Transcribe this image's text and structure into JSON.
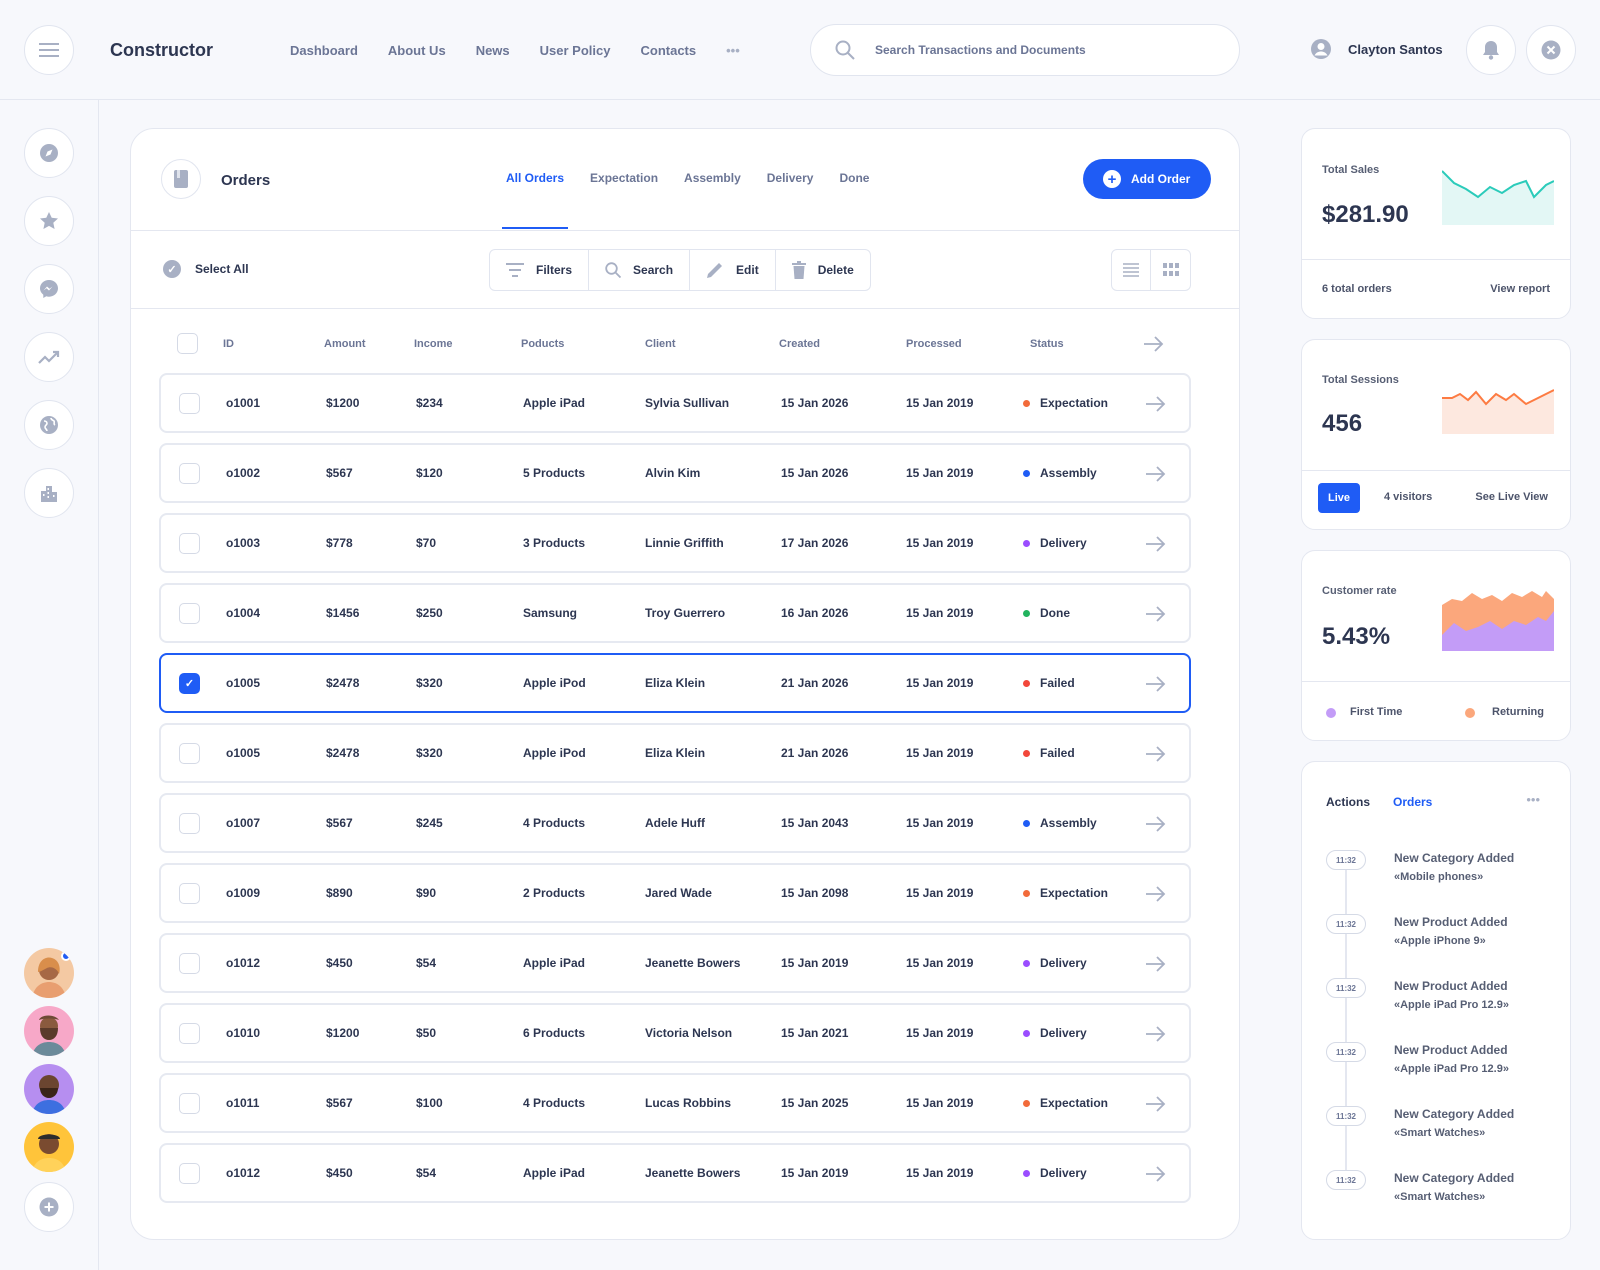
{
  "header": {
    "brand": "Constructor",
    "nav": [
      "Dashboard",
      "About Us",
      "News",
      "User Policy",
      "Contacts"
    ],
    "more": "•••",
    "search_placeholder": "Search Transactions and Documents",
    "user_name": "Clayton Santos"
  },
  "orders": {
    "title": "Orders",
    "tabs": [
      "All Orders",
      "Expectation",
      "Assembly",
      "Delivery",
      "Done"
    ],
    "active_tab": "All Orders",
    "add_button": "Add Order",
    "select_all": "Select All",
    "tools": [
      "Filters",
      "Search",
      "Edit",
      "Delete"
    ],
    "columns": [
      "ID",
      "Amount",
      "Income",
      "Poducts",
      "Client",
      "Created",
      "Processed",
      "Status"
    ],
    "rows": [
      {
        "id": "o1001",
        "amount": "$1200",
        "income": "$234",
        "products": "Apple iPad",
        "client": "Sylvia Sullivan",
        "created": "15 Jan 2026",
        "processed": "15 Jan 2019",
        "status": "Expectation",
        "checked": false
      },
      {
        "id": "o1002",
        "amount": "$567",
        "income": "$120",
        "products": "5 Products",
        "client": "Alvin Kim",
        "created": "15 Jan 2026",
        "processed": "15 Jan 2019",
        "status": "Assembly",
        "checked": false
      },
      {
        "id": "o1003",
        "amount": "$778",
        "income": "$70",
        "products": "3 Products",
        "client": "Linnie Griffith",
        "created": "17 Jan 2026",
        "processed": "15 Jan 2019",
        "status": "Delivery",
        "checked": false
      },
      {
        "id": "o1004",
        "amount": "$1456",
        "income": "$250",
        "products": "Samsung",
        "client": "Troy Guerrero",
        "created": "16 Jan 2026",
        "processed": "15 Jan 2019",
        "status": "Done",
        "checked": false
      },
      {
        "id": "o1005",
        "amount": "$2478",
        "income": "$320",
        "products": "Apple iPod",
        "client": "Eliza Klein",
        "created": "21 Jan 2026",
        "processed": "15 Jan 2019",
        "status": "Failed",
        "checked": true
      },
      {
        "id": "o1005",
        "amount": "$2478",
        "income": "$320",
        "products": "Apple iPod",
        "client": "Eliza Klein",
        "created": "21 Jan 2026",
        "processed": "15 Jan 2019",
        "status": "Failed",
        "checked": false
      },
      {
        "id": "o1007",
        "amount": "$567",
        "income": "$245",
        "products": "4 Products",
        "client": "Adele Huff",
        "created": "15 Jan 2043",
        "processed": "15 Jan 2019",
        "status": "Assembly",
        "checked": false
      },
      {
        "id": "o1009",
        "amount": "$890",
        "income": "$90",
        "products": "2 Products",
        "client": "Jared Wade",
        "created": "15 Jan 2098",
        "processed": "15 Jan 2019",
        "status": "Expectation",
        "checked": false
      },
      {
        "id": "o1012",
        "amount": "$450",
        "income": "$54",
        "products": "Apple iPad",
        "client": "Jeanette Bowers",
        "created": "15 Jan 2019",
        "processed": "15 Jan 2019",
        "status": "Delivery",
        "checked": false
      },
      {
        "id": "o1010",
        "amount": "$1200",
        "income": "$50",
        "products": "6 Products",
        "client": "Victoria Nelson",
        "created": "15 Jan 2021",
        "processed": "15 Jan 2019",
        "status": "Delivery",
        "checked": false
      },
      {
        "id": "o1011",
        "amount": "$567",
        "income": "$100",
        "products": "4 Products",
        "client": "Lucas Robbins",
        "created": "15 Jan 2025",
        "processed": "15 Jan 2019",
        "status": "Expectation",
        "checked": false
      },
      {
        "id": "o1012",
        "amount": "$450",
        "income": "$54",
        "products": "Apple iPad",
        "client": "Jeanette Bowers",
        "created": "15 Jan 2019",
        "processed": "15 Jan 2019",
        "status": "Delivery",
        "checked": false
      }
    ]
  },
  "status_colors": {
    "Expectation": "#f26b3a",
    "Assembly": "#1f5cf5",
    "Delivery": "#9b4dff",
    "Done": "#22b35e",
    "Failed": "#f2473a"
  },
  "stats": {
    "sales": {
      "label": "Total Sales",
      "value": "$281.90",
      "footer_left": "6 total orders",
      "footer_right": "View report",
      "color": "#2bcbba"
    },
    "sessions": {
      "label": "Total Sessions",
      "value": "456",
      "live": "Live",
      "visitors": "4 visitors",
      "footer_right": "See Live View",
      "color": "#fd7b42"
    },
    "customer": {
      "label": "Customer rate",
      "value": "5.43%",
      "legend": [
        "First Time",
        "Returning"
      ],
      "colors": [
        "#c39cf7",
        "#fba77c"
      ]
    }
  },
  "actions": {
    "tabs": [
      "Actions",
      "Orders"
    ],
    "more": "•••",
    "items": [
      {
        "time": "11:32",
        "title": "New Category Added",
        "sub": "«Mobile phones»"
      },
      {
        "time": "11:32",
        "title": "New Product Added",
        "sub": "«Apple iPhone 9»"
      },
      {
        "time": "11:32",
        "title": "New Product Added",
        "sub": "«Apple iPad Pro 12.9»"
      },
      {
        "time": "11:32",
        "title": "New Product Added",
        "sub": "«Apple iPad Pro 12.9»"
      },
      {
        "time": "11:32",
        "title": "New Category Added",
        "sub": "«Smart Watches»"
      },
      {
        "time": "11:32",
        "title": "New Category Added",
        "sub": "«Smart Watches»"
      }
    ]
  },
  "sidebar": {
    "icons": [
      "compass-icon",
      "star-icon",
      "messenger-icon",
      "trending-icon",
      "globe-icon",
      "buildings-icon"
    ]
  }
}
